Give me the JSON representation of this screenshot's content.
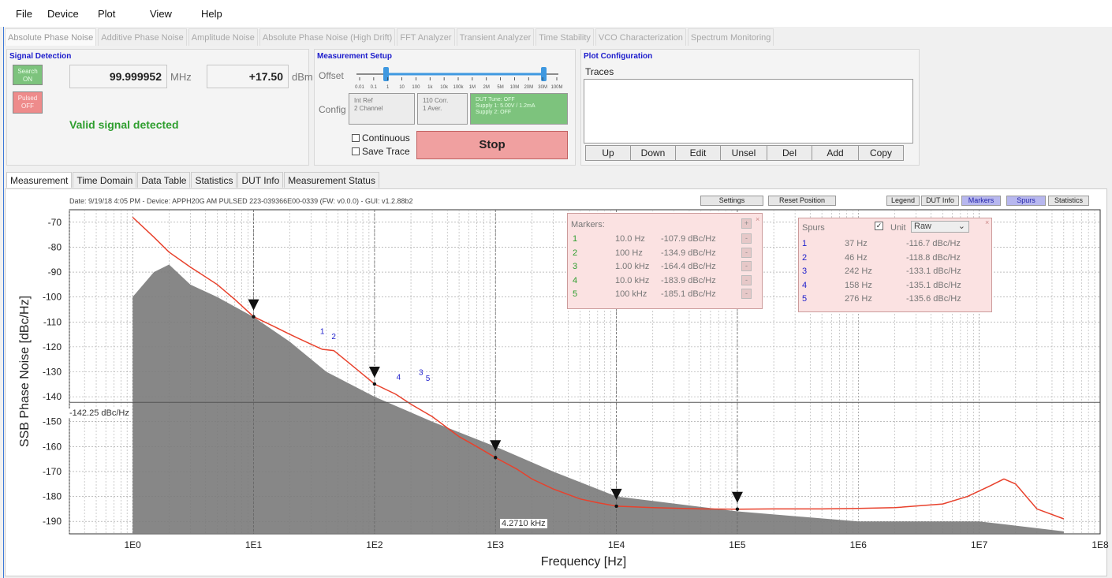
{
  "menu": [
    "File",
    "Device",
    "Plot",
    "View",
    "Help"
  ],
  "mode_tabs": [
    "Absolute Phase Noise",
    "Additive Phase Noise",
    "Amplitude Noise",
    "Absolute Phase Noise (High Drift)",
    "FFT Analyzer",
    "Transient Analyzer",
    "Time Stability",
    "VCO Characterization",
    "Spectrum Monitoring"
  ],
  "signal_detection": {
    "title": "Signal Detection",
    "search_btn": "Search ON",
    "pulsed_btn": "Pulsed OFF",
    "frequency": "99.999952",
    "freq_unit": "MHz",
    "power": "+17.50",
    "power_unit": "dBm",
    "status": "Valid signal detected"
  },
  "measurement_setup": {
    "title": "Measurement Setup",
    "offset_label": "Offset",
    "offset_ticks": [
      "0.01",
      "0.1",
      "1",
      "10",
      "100",
      "1k",
      "10k",
      "100k",
      "1M",
      "2M",
      "5M",
      "10M",
      "20M",
      "30M",
      "100M"
    ],
    "config_label": "Config",
    "config_1": [
      "Int Ref",
      "2 Channel"
    ],
    "config_2": [
      "110 Corr.",
      "1 Aver."
    ],
    "config_3": [
      "DUT Tune: OFF",
      "Supply 1: 5.00V / 1.2mA",
      "Supply 2: OFF"
    ],
    "continuous": "Continuous",
    "save_trace": "Save Trace",
    "stop": "Stop"
  },
  "plot_config": {
    "title": "Plot Configuration",
    "traces_label": "Traces",
    "buttons": [
      "Up",
      "Down",
      "Edit",
      "Unsel",
      "Del",
      "Add",
      "Copy"
    ]
  },
  "sub_tabs": [
    "Measurement",
    "Time Domain",
    "Data Table",
    "Statistics",
    "DUT Info",
    "Measurement Status"
  ],
  "plot_header": "Date: 9/19/18 4:05 PM - Device: APPH20G AM PULSED 223-039366E00-0339 (FW: v0.0.0) - GUI: v1.2.88b2",
  "plot_buttons": {
    "settings": "Settings",
    "reset": "Reset Position",
    "legend": "Legend",
    "dut_info": "DUT Info",
    "markers": "Markers",
    "spurs": "Spurs",
    "statistics": "Statistics"
  },
  "markers_box": {
    "title": "Markers:",
    "rows": [
      {
        "n": "1",
        "f": "10.0 Hz",
        "v": "-107.9 dBc/Hz"
      },
      {
        "n": "2",
        "f": "100 Hz",
        "v": "-134.9 dBc/Hz"
      },
      {
        "n": "3",
        "f": "1.00 kHz",
        "v": "-164.4 dBc/Hz"
      },
      {
        "n": "4",
        "f": "10.0 kHz",
        "v": "-183.9 dBc/Hz"
      },
      {
        "n": "5",
        "f": "100 kHz",
        "v": "-185.1 dBc/Hz"
      }
    ]
  },
  "spurs_box": {
    "title": "Spurs",
    "unit_label": "Unit",
    "unit_value": "Raw",
    "rows": [
      {
        "n": "1",
        "f": "37 Hz",
        "v": "-116.7 dBc/Hz"
      },
      {
        "n": "2",
        "f": "46 Hz",
        "v": "-118.8 dBc/Hz"
      },
      {
        "n": "3",
        "f": "242 Hz",
        "v": "-133.1 dBc/Hz"
      },
      {
        "n": "4",
        "f": "158 Hz",
        "v": "-135.1 dBc/Hz"
      },
      {
        "n": "5",
        "f": "276 Hz",
        "v": "-135.6 dBc/Hz"
      }
    ]
  },
  "chart_data": {
    "type": "line",
    "xlabel": "Frequency [Hz]",
    "ylabel": "SSB Phase Noise [dBc/Hz]",
    "x_scale": "log",
    "xlim": [
      0.3,
      100000000
    ],
    "ylim": [
      -195,
      -65
    ],
    "x_ticks": [
      {
        "v": 1,
        "label": "1E0"
      },
      {
        "v": 10,
        "label": "1E1"
      },
      {
        "v": 100,
        "label": "1E2"
      },
      {
        "v": 1000,
        "label": "1E3"
      },
      {
        "v": 10000,
        "label": "1E4"
      },
      {
        "v": 100000,
        "label": "1E5"
      },
      {
        "v": 1000000,
        "label": "1E6"
      },
      {
        "v": 10000000,
        "label": "1E7"
      },
      {
        "v": 100000000,
        "label": "1E8"
      }
    ],
    "y_ticks": [
      -70,
      -80,
      -90,
      -100,
      -110,
      -120,
      -130,
      -140,
      -150,
      -160,
      -170,
      -180,
      -190
    ],
    "hline": {
      "y": -142.25,
      "label": "-142.25 dBc/Hz"
    },
    "cursor_label": "4.2710 kHz",
    "series": [
      {
        "color": "#e8412c",
        "x": [
          1,
          1.5,
          2,
          3,
          5,
          7,
          10,
          15,
          20,
          30,
          37,
          46,
          60,
          80,
          100,
          150,
          200,
          300,
          500,
          700,
          1000,
          1500,
          2000,
          3000,
          5000,
          7000,
          10000,
          20000,
          50000,
          100000,
          200000,
          500000,
          1000000,
          2000000,
          5000000,
          8000000,
          12000000,
          16000000,
          20000000,
          30000000,
          50000000
        ],
        "y": [
          -68,
          -76,
          -82,
          -88,
          -95,
          -101,
          -107.9,
          -112,
          -115,
          -119,
          -121,
          -121.5,
          -126,
          -131,
          -134.9,
          -139,
          -143,
          -148,
          -156,
          -160,
          -164.4,
          -169,
          -173,
          -177,
          -181,
          -182.5,
          -183.9,
          -184.5,
          -185,
          -185.1,
          -185,
          -185,
          -184.8,
          -184.5,
          -183,
          -180,
          -176,
          -173,
          -175,
          -185,
          -189
        ]
      },
      {
        "color": "#7a7a7a",
        "fill": true,
        "x": [
          1,
          1.5,
          2,
          3,
          5,
          10,
          20,
          40,
          100,
          300,
          1000,
          3000,
          10000,
          100000,
          1000000,
          10000000,
          50000000
        ],
        "y": [
          -100,
          -90,
          -87,
          -95,
          -100,
          -108,
          -118,
          -130,
          -140,
          -150,
          -160,
          -170,
          -180,
          -186,
          -190,
          -190,
          -194
        ]
      }
    ],
    "markers": [
      {
        "label": "1",
        "x": 10,
        "y": -107.9
      },
      {
        "label": "2",
        "x": 100,
        "y": -134.9
      },
      {
        "label": "3",
        "x": 1000,
        "y": -164.4
      },
      {
        "label": "4",
        "x": 10000,
        "y": -183.9
      },
      {
        "label": "5",
        "x": 100000,
        "y": -185.1
      }
    ],
    "spurs": [
      {
        "label": "1",
        "x": 37,
        "y": -116.7
      },
      {
        "label": "2",
        "x": 46,
        "y": -118.8
      },
      {
        "label": "3",
        "x": 242,
        "y": -133.1
      },
      {
        "label": "4",
        "x": 158,
        "y": -135.1
      },
      {
        "label": "5",
        "x": 276,
        "y": -135.6
      }
    ]
  },
  "colors": {
    "accent_blue": "#1b1bcc",
    "trace_red": "#e8412c",
    "valid_green": "#2e9e2e",
    "marker_box": "#fbe2e2"
  }
}
